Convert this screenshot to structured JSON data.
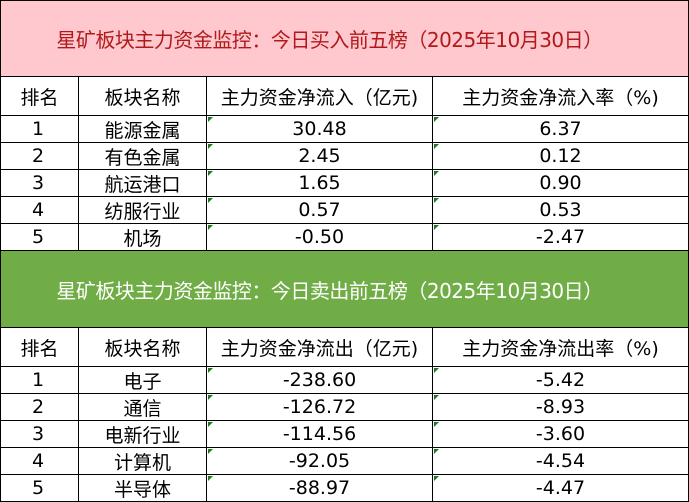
{
  "colors": {
    "buy_title_bg": "#ffc7ce",
    "buy_title_text": "#b01a1a",
    "sell_title_bg": "#70ad47",
    "sell_title_text": "#ffffff"
  },
  "buy": {
    "title": "星矿板块主力资金监控：今日买入前五榜（2025年10月30日）",
    "headers": [
      "排名",
      "板块名称",
      "主力资金净流入（亿元)",
      "主力资金净流入率（%)"
    ],
    "rows": [
      [
        "1",
        "能源金属",
        "30.48",
        "6.37"
      ],
      [
        "2",
        "有色金属",
        "2.45",
        "0.12"
      ],
      [
        "3",
        "航运港口",
        "1.65",
        "0.90"
      ],
      [
        "4",
        "纺服行业",
        "0.57",
        "0.53"
      ],
      [
        "5",
        "机场",
        "-0.50",
        "-2.47"
      ]
    ]
  },
  "sell": {
    "title": "星矿板块主力资金监控：今日卖出前五榜（2025年10月30日）",
    "headers": [
      "排名",
      "板块名称",
      "主力资金净流出（亿元)",
      "主力资金净流出率（%)"
    ],
    "rows": [
      [
        "1",
        "电子",
        "-238.60",
        "-5.42"
      ],
      [
        "2",
        "通信",
        "-126.72",
        "-8.93"
      ],
      [
        "3",
        "电新行业",
        "-114.56",
        "-3.60"
      ],
      [
        "4",
        "计算机",
        "-92.05",
        "-4.54"
      ],
      [
        "5",
        "半导体",
        "-88.97",
        "-4.47"
      ]
    ]
  }
}
